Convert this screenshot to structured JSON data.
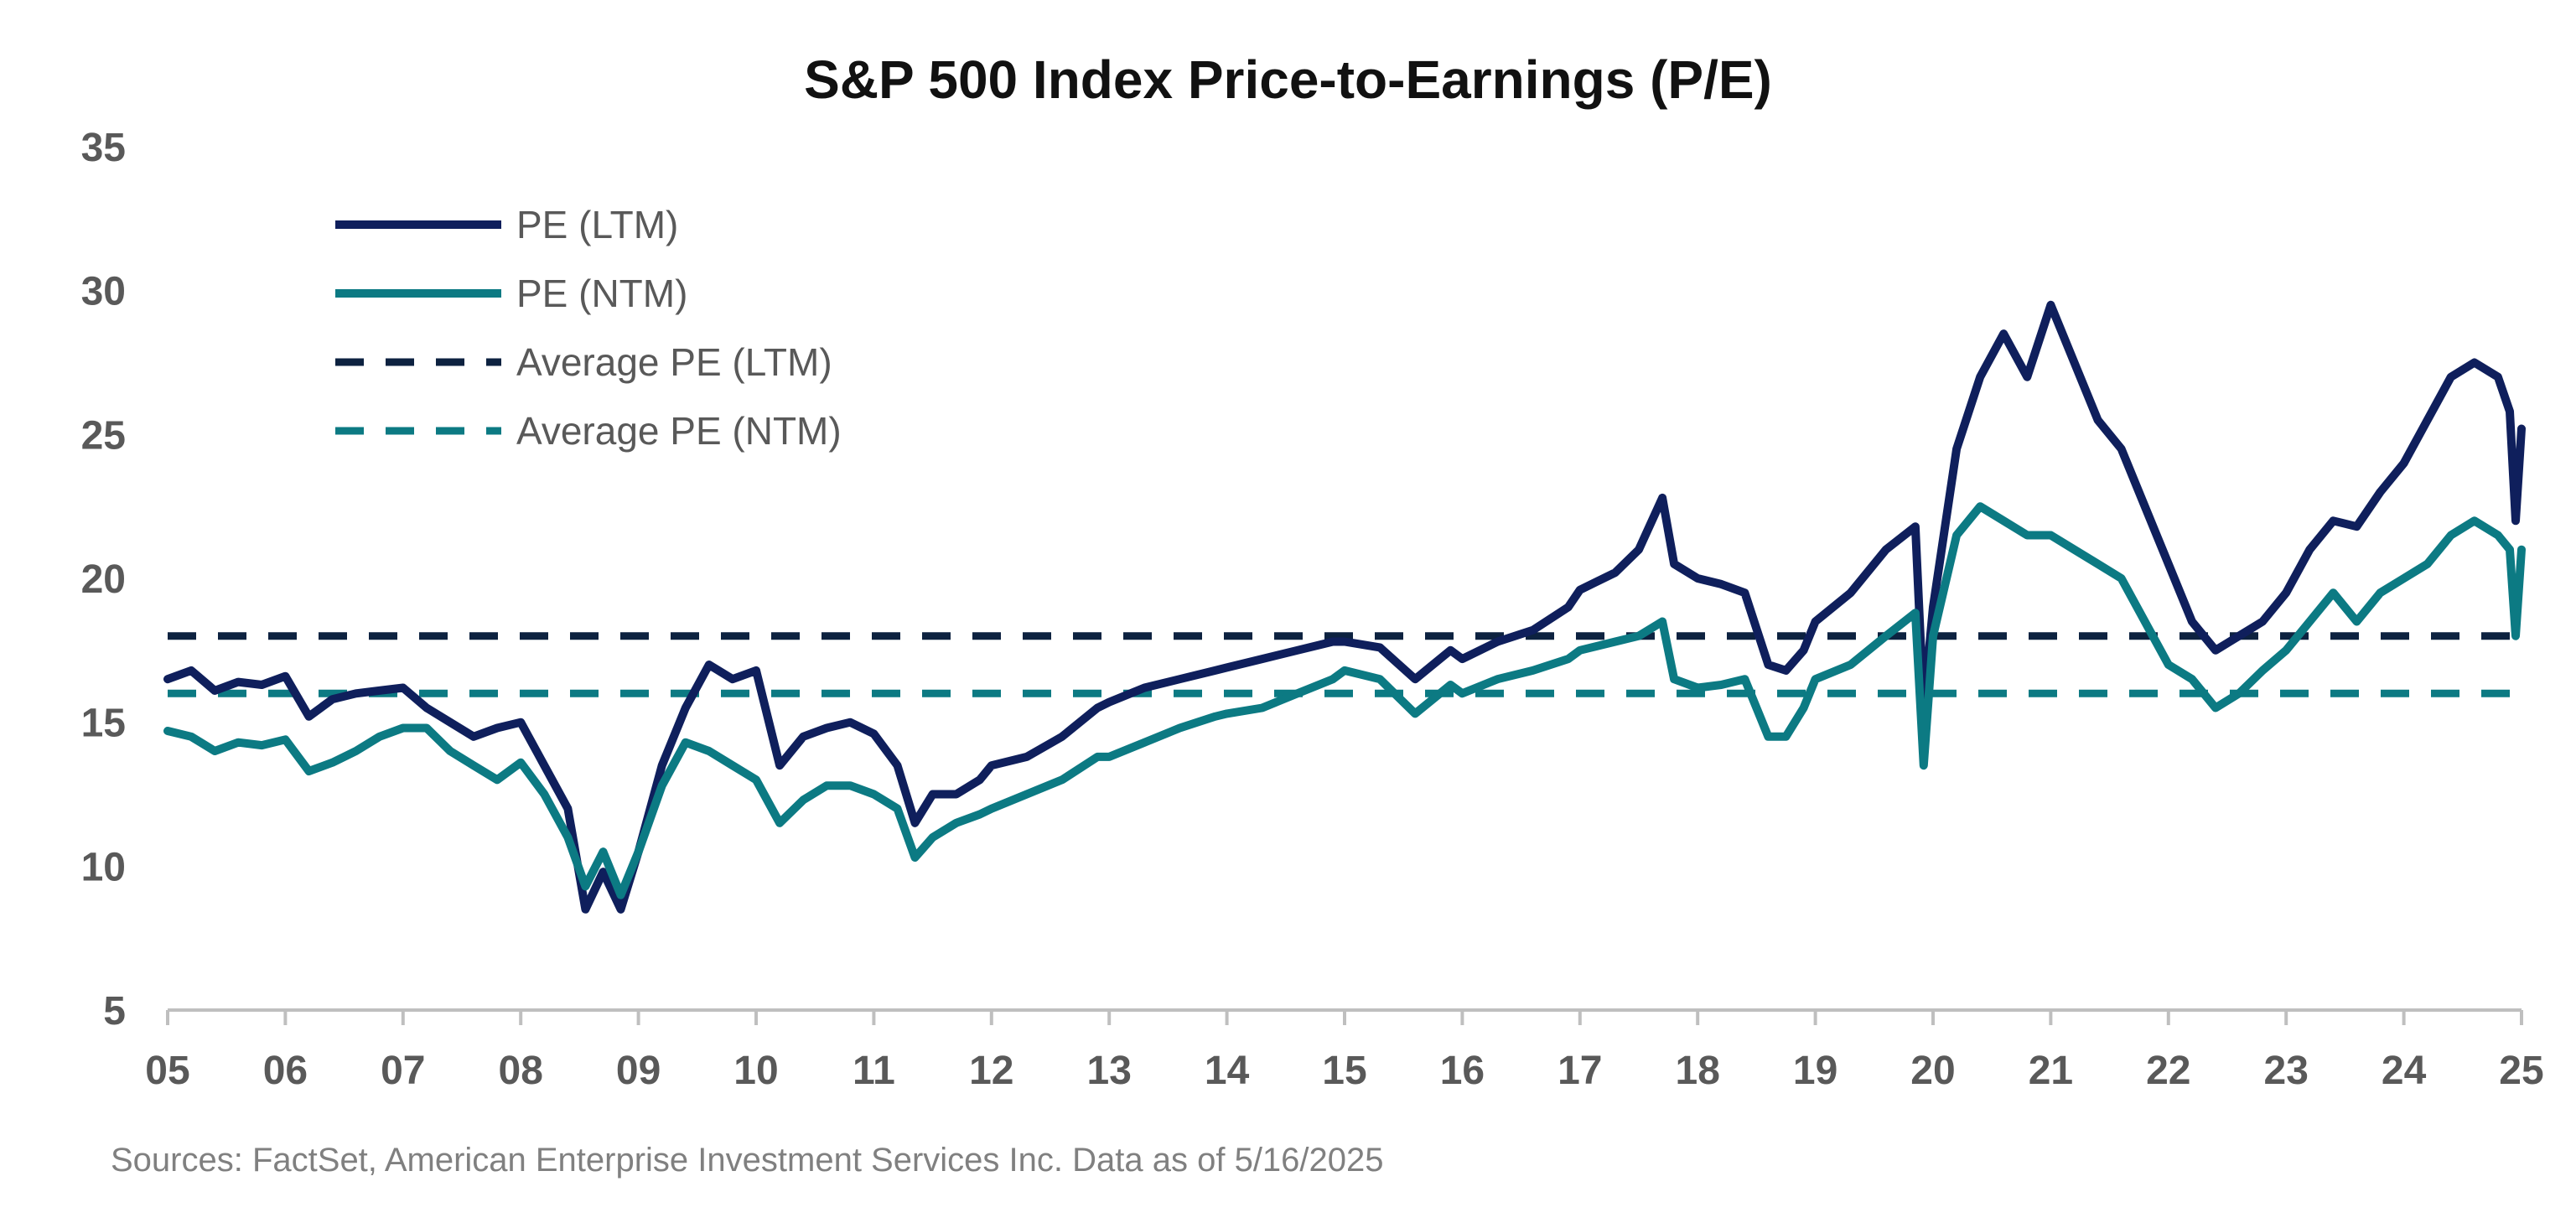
{
  "chart_data": {
    "type": "line",
    "title": "S&P 500 Index Price-to-Earnings (P/E)",
    "xlabel": "",
    "ylabel": "",
    "x_tick_labels": [
      "05",
      "06",
      "07",
      "08",
      "09",
      "10",
      "11",
      "12",
      "13",
      "14",
      "15",
      "16",
      "17",
      "18",
      "19",
      "20",
      "21",
      "22",
      "23",
      "24",
      "25"
    ],
    "x_range": [
      2005,
      2025
    ],
    "y_ticks": [
      5,
      10,
      15,
      20,
      25,
      30,
      35
    ],
    "ylim": [
      5,
      35
    ],
    "grid": false,
    "legend_position": "top-left",
    "series": [
      {
        "name": "PE (LTM)",
        "style": "solid",
        "color": "#0f1f5c",
        "x": [
          2005.0,
          2005.2,
          2005.4,
          2005.6,
          2005.8,
          2006.0,
          2006.2,
          2006.4,
          2006.6,
          2006.8,
          2007.0,
          2007.2,
          2007.4,
          2007.6,
          2007.8,
          2008.0,
          2008.2,
          2008.4,
          2008.55,
          2008.7,
          2008.85,
          2009.0,
          2009.2,
          2009.4,
          2009.6,
          2009.8,
          2010.0,
          2010.2,
          2010.4,
          2010.6,
          2010.8,
          2011.0,
          2011.2,
          2011.35,
          2011.5,
          2011.7,
          2011.9,
          2012.0,
          2012.3,
          2012.6,
          2012.9,
          2013.0,
          2013.3,
          2013.6,
          2013.9,
          2014.0,
          2014.3,
          2014.6,
          2014.9,
          2015.0,
          2015.3,
          2015.6,
          2015.9,
          2016.0,
          2016.3,
          2016.6,
          2016.9,
          2017.0,
          2017.3,
          2017.5,
          2017.7,
          2017.8,
          2018.0,
          2018.2,
          2018.4,
          2018.6,
          2018.75,
          2018.9,
          2019.0,
          2019.3,
          2019.6,
          2019.85,
          2019.92,
          2020.0,
          2020.2,
          2020.4,
          2020.6,
          2020.8,
          2021.0,
          2021.2,
          2021.4,
          2021.6,
          2021.8,
          2022.0,
          2022.2,
          2022.4,
          2022.6,
          2022.8,
          2023.0,
          2023.2,
          2023.4,
          2023.6,
          2023.8,
          2024.0,
          2024.2,
          2024.4,
          2024.6,
          2024.8,
          2024.9,
          2024.95,
          2025.0
        ],
        "y": [
          16.5,
          16.8,
          16.1,
          16.4,
          16.3,
          16.6,
          15.2,
          15.8,
          16.0,
          16.1,
          16.2,
          15.5,
          15.0,
          14.5,
          14.8,
          15.0,
          13.5,
          12.0,
          8.5,
          9.8,
          8.5,
          10.5,
          13.5,
          15.5,
          17.0,
          16.5,
          16.8,
          13.5,
          14.5,
          14.8,
          15.0,
          14.6,
          13.5,
          11.5,
          12.5,
          12.5,
          13.0,
          13.5,
          13.8,
          14.5,
          15.5,
          15.7,
          16.2,
          16.5,
          16.8,
          16.9,
          17.2,
          17.5,
          17.8,
          17.8,
          17.6,
          16.5,
          17.5,
          17.2,
          17.8,
          18.2,
          19.0,
          19.6,
          20.2,
          21.0,
          22.8,
          20.5,
          20.0,
          19.8,
          19.5,
          17.0,
          16.8,
          17.5,
          18.5,
          19.5,
          21.0,
          21.8,
          15.5,
          19.0,
          24.5,
          27.0,
          28.5,
          27.0,
          29.5,
          27.5,
          25.5,
          24.5,
          22.5,
          20.5,
          18.5,
          17.5,
          18.0,
          18.5,
          19.5,
          21.0,
          22.0,
          21.8,
          23.0,
          24.0,
          25.5,
          27.0,
          27.5,
          27.0,
          25.8,
          22.0,
          25.2
        ]
      },
      {
        "name": "PE (NTM)",
        "style": "solid",
        "color": "#0c7a83",
        "x": [
          2005.0,
          2005.2,
          2005.4,
          2005.6,
          2005.8,
          2006.0,
          2006.2,
          2006.4,
          2006.6,
          2006.8,
          2007.0,
          2007.2,
          2007.4,
          2007.6,
          2007.8,
          2008.0,
          2008.2,
          2008.4,
          2008.55,
          2008.7,
          2008.85,
          2009.0,
          2009.2,
          2009.4,
          2009.6,
          2009.8,
          2010.0,
          2010.2,
          2010.4,
          2010.6,
          2010.8,
          2011.0,
          2011.2,
          2011.35,
          2011.5,
          2011.7,
          2011.9,
          2012.0,
          2012.3,
          2012.6,
          2012.9,
          2013.0,
          2013.3,
          2013.6,
          2013.9,
          2014.0,
          2014.3,
          2014.6,
          2014.9,
          2015.0,
          2015.3,
          2015.6,
          2015.9,
          2016.0,
          2016.3,
          2016.6,
          2016.9,
          2017.0,
          2017.3,
          2017.5,
          2017.7,
          2017.8,
          2018.0,
          2018.2,
          2018.4,
          2018.6,
          2018.75,
          2018.9,
          2019.0,
          2019.3,
          2019.6,
          2019.85,
          2019.92,
          2020.0,
          2020.2,
          2020.4,
          2020.6,
          2020.8,
          2021.0,
          2021.2,
          2021.4,
          2021.6,
          2021.8,
          2022.0,
          2022.2,
          2022.4,
          2022.6,
          2022.8,
          2023.0,
          2023.2,
          2023.4,
          2023.6,
          2023.8,
          2024.0,
          2024.2,
          2024.4,
          2024.6,
          2024.8,
          2024.9,
          2024.95,
          2025.0
        ],
        "y": [
          14.7,
          14.5,
          14.0,
          14.3,
          14.2,
          14.4,
          13.3,
          13.6,
          14.0,
          14.5,
          14.8,
          14.8,
          14.0,
          13.5,
          13.0,
          13.6,
          12.5,
          11.0,
          9.3,
          10.5,
          9.0,
          10.5,
          12.8,
          14.3,
          14.0,
          13.5,
          13.0,
          11.5,
          12.3,
          12.8,
          12.8,
          12.5,
          12.0,
          10.3,
          11.0,
          11.5,
          11.8,
          12.0,
          12.5,
          13.0,
          13.8,
          13.8,
          14.3,
          14.8,
          15.2,
          15.3,
          15.5,
          16.0,
          16.5,
          16.8,
          16.5,
          15.3,
          16.3,
          16.0,
          16.5,
          16.8,
          17.2,
          17.5,
          17.8,
          18.0,
          18.5,
          16.5,
          16.2,
          16.3,
          16.5,
          14.5,
          14.5,
          15.5,
          16.5,
          17.0,
          18.0,
          18.8,
          13.5,
          18.0,
          21.5,
          22.5,
          22.0,
          21.5,
          21.5,
          21.0,
          20.5,
          20.0,
          18.5,
          17.0,
          16.5,
          15.5,
          16.0,
          16.8,
          17.5,
          18.5,
          19.5,
          18.5,
          19.5,
          20.0,
          20.5,
          21.5,
          22.0,
          21.5,
          21.0,
          18.0,
          21.0
        ]
      },
      {
        "name": "Average PE (LTM)",
        "style": "dashed",
        "color": "#0d2240",
        "x": [
          2005.0,
          2025.0
        ],
        "y": [
          18.0,
          18.0
        ]
      },
      {
        "name": "Average PE (NTM)",
        "style": "dashed",
        "color": "#0c7a83",
        "x": [
          2005.0,
          2025.0
        ],
        "y": [
          16.0,
          16.0
        ]
      }
    ]
  },
  "source_note": "Sources: FactSet, American Enterprise Investment Services Inc.  Data as of 5/16/2025"
}
